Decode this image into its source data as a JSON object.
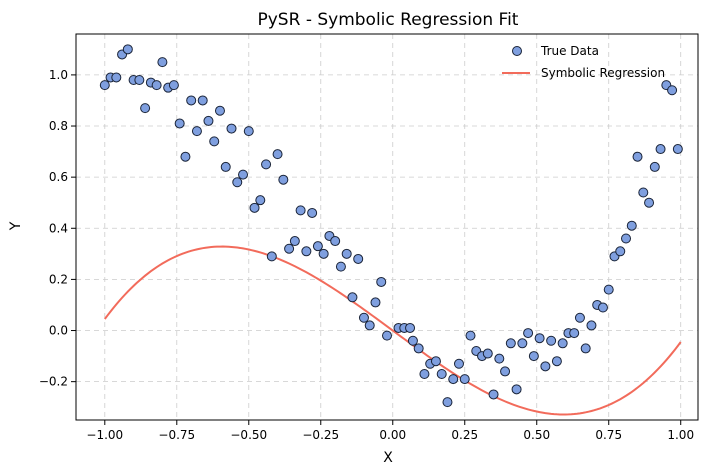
{
  "chart_data": {
    "type": "scatter",
    "title": "PySR - Symbolic Regression Fit",
    "xlabel": "X",
    "ylabel": "Y",
    "xlim": [
      -1.1,
      1.06
    ],
    "ylim": [
      -0.35,
      1.16
    ],
    "x_ticks": [
      -1.0,
      -0.75,
      -0.5,
      -0.25,
      0.0,
      0.25,
      0.5,
      0.75,
      1.0
    ],
    "x_tick_labels": [
      "−1.00",
      "−0.75",
      "−0.50",
      "−0.25",
      "0.00",
      "0.25",
      "0.50",
      "0.75",
      "1.00"
    ],
    "y_ticks": [
      -0.2,
      0.0,
      0.2,
      0.4,
      0.6,
      0.8,
      1.0
    ],
    "y_tick_labels": [
      "−0.2",
      "0.0",
      "0.2",
      "0.4",
      "0.6",
      "0.8",
      "1.0"
    ],
    "grid": true,
    "legend_position": "top-right",
    "colors": {
      "scatter_fill": "#7f9fdf",
      "scatter_edge": "#1a2438",
      "line": "#f26b5b",
      "grid": "#cccccc"
    },
    "series": [
      {
        "name": "True Data",
        "kind": "scatter",
        "points": [
          [
            -1.0,
            0.96
          ],
          [
            -0.98,
            0.99
          ],
          [
            -0.96,
            0.99
          ],
          [
            -0.94,
            1.08
          ],
          [
            -0.92,
            1.1
          ],
          [
            -0.9,
            0.98
          ],
          [
            -0.88,
            0.98
          ],
          [
            -0.86,
            0.87
          ],
          [
            -0.84,
            0.97
          ],
          [
            -0.82,
            0.96
          ],
          [
            -0.8,
            1.05
          ],
          [
            -0.78,
            0.95
          ],
          [
            -0.76,
            0.96
          ],
          [
            -0.74,
            0.81
          ],
          [
            -0.72,
            0.68
          ],
          [
            -0.7,
            0.9
          ],
          [
            -0.68,
            0.78
          ],
          [
            -0.66,
            0.9
          ],
          [
            -0.64,
            0.82
          ],
          [
            -0.62,
            0.74
          ],
          [
            -0.6,
            0.86
          ],
          [
            -0.58,
            0.64
          ],
          [
            -0.56,
            0.79
          ],
          [
            -0.54,
            0.58
          ],
          [
            -0.52,
            0.61
          ],
          [
            -0.5,
            0.78
          ],
          [
            -0.48,
            0.48
          ],
          [
            -0.46,
            0.51
          ],
          [
            -0.44,
            0.65
          ],
          [
            -0.42,
            0.29
          ],
          [
            -0.4,
            0.69
          ],
          [
            -0.38,
            0.59
          ],
          [
            -0.36,
            0.32
          ],
          [
            -0.34,
            0.35
          ],
          [
            -0.32,
            0.47
          ],
          [
            -0.3,
            0.31
          ],
          [
            -0.28,
            0.46
          ],
          [
            -0.26,
            0.33
          ],
          [
            -0.24,
            0.3
          ],
          [
            -0.22,
            0.37
          ],
          [
            -0.2,
            0.35
          ],
          [
            -0.18,
            0.25
          ],
          [
            -0.16,
            0.3
          ],
          [
            -0.14,
            0.13
          ],
          [
            -0.12,
            0.28
          ],
          [
            -0.1,
            0.05
          ],
          [
            -0.08,
            0.02
          ],
          [
            -0.06,
            0.11
          ],
          [
            -0.04,
            0.19
          ],
          [
            -0.02,
            -0.02
          ],
          [
            0.02,
            0.01
          ],
          [
            0.04,
            0.01
          ],
          [
            0.06,
            0.01
          ],
          [
            0.07,
            -0.04
          ],
          [
            0.09,
            -0.07
          ],
          [
            0.11,
            -0.17
          ],
          [
            0.13,
            -0.13
          ],
          [
            0.15,
            -0.12
          ],
          [
            0.17,
            -0.17
          ],
          [
            0.19,
            -0.28
          ],
          [
            0.21,
            -0.19
          ],
          [
            0.23,
            -0.13
          ],
          [
            0.25,
            -0.19
          ],
          [
            0.27,
            -0.02
          ],
          [
            0.29,
            -0.08
          ],
          [
            0.31,
            -0.1
          ],
          [
            0.33,
            -0.09
          ],
          [
            0.35,
            -0.25
          ],
          [
            0.37,
            -0.11
          ],
          [
            0.39,
            -0.16
          ],
          [
            0.41,
            -0.05
          ],
          [
            0.43,
            -0.23
          ],
          [
            0.45,
            -0.05
          ],
          [
            0.47,
            -0.01
          ],
          [
            0.49,
            -0.1
          ],
          [
            0.51,
            -0.03
          ],
          [
            0.53,
            -0.14
          ],
          [
            0.55,
            -0.04
          ],
          [
            0.57,
            -0.12
          ],
          [
            0.59,
            -0.05
          ],
          [
            0.61,
            -0.01
          ],
          [
            0.63,
            -0.01
          ],
          [
            0.65,
            0.05
          ],
          [
            0.67,
            -0.07
          ],
          [
            0.69,
            0.02
          ],
          [
            0.71,
            0.1
          ],
          [
            0.73,
            0.09
          ],
          [
            0.75,
            0.16
          ],
          [
            0.77,
            0.29
          ],
          [
            0.79,
            0.31
          ],
          [
            0.81,
            0.36
          ],
          [
            0.83,
            0.41
          ],
          [
            0.85,
            0.68
          ],
          [
            0.87,
            0.54
          ],
          [
            0.89,
            0.5
          ],
          [
            0.91,
            0.64
          ],
          [
            0.93,
            0.71
          ],
          [
            0.95,
            0.96
          ],
          [
            0.97,
            0.94
          ],
          [
            0.99,
            0.71
          ]
        ]
      },
      {
        "name": "Symbolic Regression",
        "kind": "line",
        "formula_coefficients": {
          "c3": 0.785,
          "c1": -0.83,
          "c0": 0.0
        },
        "x_range": [
          -1.0,
          1.0
        ]
      }
    ]
  }
}
